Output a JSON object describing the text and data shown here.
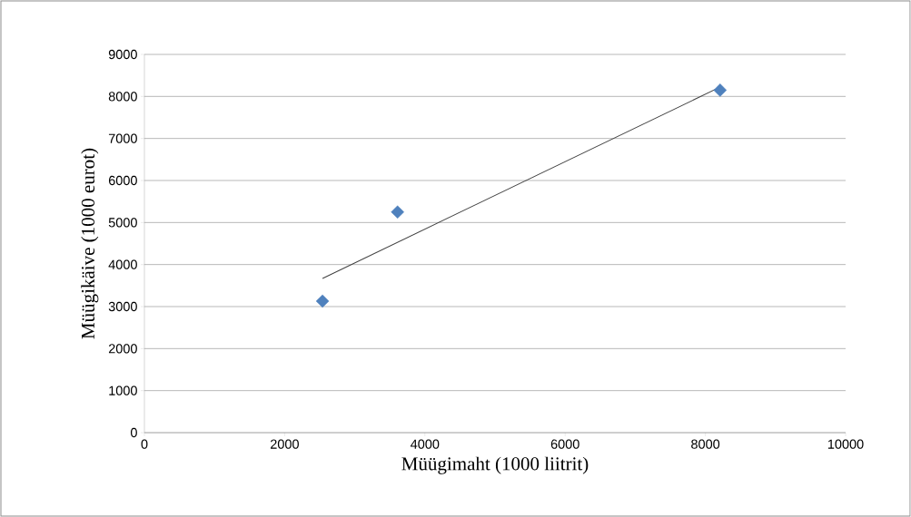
{
  "chart_data": {
    "type": "scatter",
    "xlabel": "Müügimaht (1000 liitrit)",
    "ylabel": "Müügikäive (1000 eurot)",
    "series": [
      {
        "color": "#4f81bd",
        "marker": "diamond",
        "x": [
          2540,
          3610,
          8210
        ],
        "values": [
          3130,
          5250,
          8150
        ]
      },
      {
        "type": "line",
        "color": "#404040",
        "marker": "none",
        "line_style": "solid",
        "x": [
          2540,
          8220
        ],
        "values": [
          3670,
          8230
        ]
      }
    ],
    "xlim": [
      0,
      10000
    ],
    "xticks": [
      0,
      2000,
      4000,
      6000,
      8000,
      10000
    ],
    "ylim": [
      0,
      9000
    ],
    "yticks": [
      0,
      1000,
      2000,
      3000,
      4000,
      5000,
      6000,
      7000,
      8000,
      9000
    ],
    "grid": "y"
  }
}
